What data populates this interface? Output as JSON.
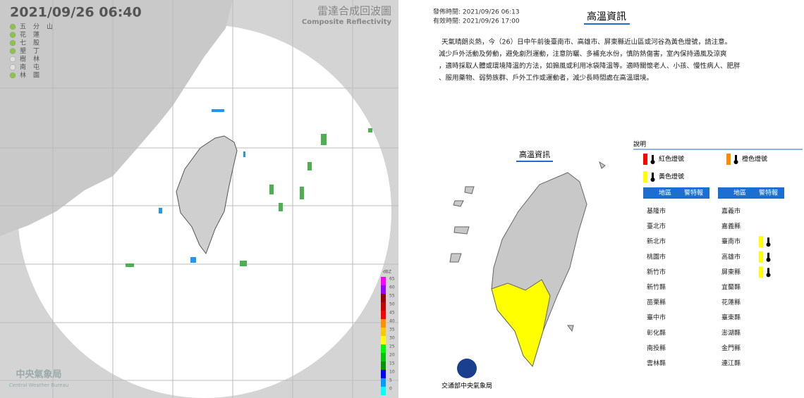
{
  "radar": {
    "timestamp": "2021/09/26  06:40",
    "title": "雷達合成回波圖",
    "subtitle": "Composite Reflectivity",
    "stations": [
      {
        "label": "五分山",
        "color": "#8bc34a"
      },
      {
        "label": "花蓮",
        "color": "#8bc34a"
      },
      {
        "label": "七股",
        "color": "#8bc34a"
      },
      {
        "label": "墾丁",
        "color": "#8bc34a"
      },
      {
        "label": "樹林",
        "color": "#e0e0e0"
      },
      {
        "label": "南屯",
        "color": "#e0e0e0"
      },
      {
        "label": "林園",
        "color": "#8bc34a"
      }
    ],
    "scale_unit": "dBZ",
    "scale": [
      {
        "value": 65,
        "color": "#ff00ff"
      },
      {
        "value": 60,
        "color": "#9900ff"
      },
      {
        "value": 55,
        "color": "#960000"
      },
      {
        "value": 50,
        "color": "#c80000"
      },
      {
        "value": 45,
        "color": "#ff0000"
      },
      {
        "value": 40,
        "color": "#ff9000"
      },
      {
        "value": 35,
        "color": "#ffc800"
      },
      {
        "value": 30,
        "color": "#ffff00"
      },
      {
        "value": 25,
        "color": "#00fb00"
      },
      {
        "value": 20,
        "color": "#00c800"
      },
      {
        "value": 15,
        "color": "#009600"
      },
      {
        "value": 10,
        "color": "#0000ff"
      },
      {
        "value": 5,
        "color": "#009cff"
      },
      {
        "value": 0,
        "color": "#00ffff"
      }
    ],
    "agency": "中央氣象局",
    "agency_en": "Central Weather Bureau"
  },
  "heat": {
    "issued": "發佈時間: 2021/09/26 06:13",
    "valid": "有效時間: 2021/09/26 17:00",
    "title": "高溫資訊",
    "body": [
      "天氣晴朗炎熱，今（26）日中午前後臺南市、高雄市、屏東縣近山區或河谷為黃色燈號，請注意。",
      "減少戶外活動及勞動，避免劇烈運動，注意防曬、多補充水份，慎防熱傷害，室內保持通風及涼爽",
      "，適時採取人體或環境降溫的方法，如搧風或利用冰袋降溫等。適時關懷老人、小孩、慢性病人、肥胖",
      "、服用藥物、弱勢族群、戶外工作或運動者，減少長時間處在高溫環境。"
    ],
    "map_title": "高溫資訊",
    "legend_title": "說明",
    "legend": [
      {
        "label": "紅色燈號",
        "color": "#ff0000"
      },
      {
        "label": "橙色燈號",
        "color": "#ff8c00"
      },
      {
        "label": "黃色燈號",
        "color": "#ffff00"
      }
    ],
    "headers": [
      "地區",
      "警特報"
    ],
    "regions_left": [
      {
        "name": "基隆市"
      },
      {
        "name": "臺北市"
      },
      {
        "name": "新北市"
      },
      {
        "name": "桃園市"
      },
      {
        "name": "新竹市"
      },
      {
        "name": "新竹縣"
      },
      {
        "name": "苗栗縣"
      },
      {
        "name": "臺中市"
      },
      {
        "name": "彰化縣"
      },
      {
        "name": "南投縣"
      },
      {
        "name": "雲林縣"
      }
    ],
    "regions_right": [
      {
        "name": "嘉義市"
      },
      {
        "name": "嘉義縣"
      },
      {
        "name": "臺南市",
        "alert": "#ffff00"
      },
      {
        "name": "高雄市",
        "alert": "#ffff00"
      },
      {
        "name": "屏東縣",
        "alert": "#ffff00"
      },
      {
        "name": "宜蘭縣"
      },
      {
        "name": "花蓮縣"
      },
      {
        "name": "臺東縣"
      },
      {
        "name": "澎湖縣"
      },
      {
        "name": "金門縣"
      },
      {
        "name": "連江縣"
      }
    ],
    "footer": "交通部中央氣象局"
  }
}
